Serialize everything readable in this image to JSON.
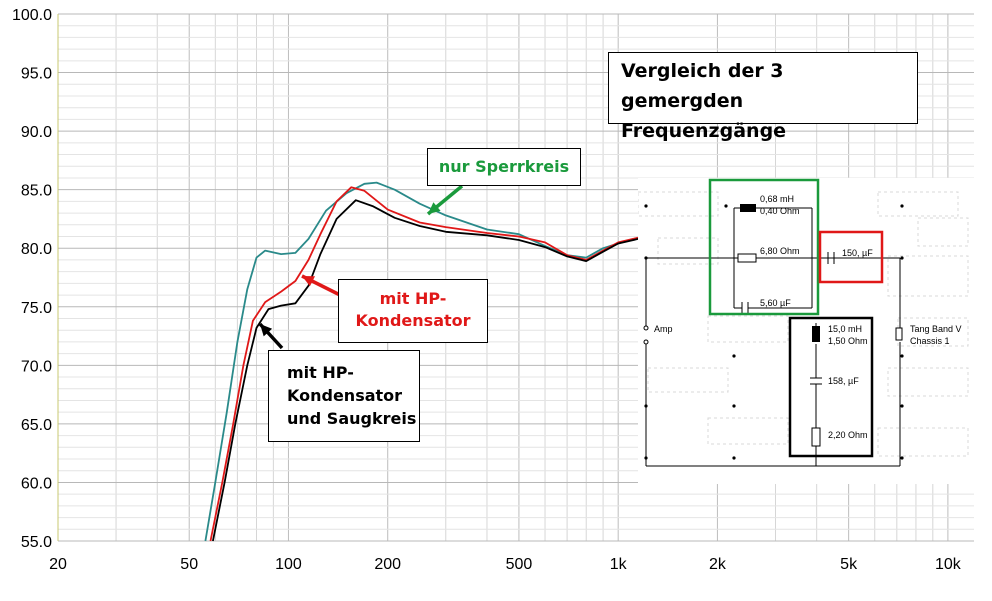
{
  "chart_data": {
    "type": "line",
    "x_scale": "log",
    "xlim": [
      20,
      12000
    ],
    "ylim": [
      55,
      100
    ],
    "y_ticks": [
      "100.0",
      "95.0",
      "90.0",
      "85.0",
      "80.0",
      "75.0",
      "70.0",
      "65.0",
      "60.0",
      "55.0"
    ],
    "x_tick_labels": [
      {
        "value": 20,
        "label": "20"
      },
      {
        "value": 50,
        "label": "50"
      },
      {
        "value": 100,
        "label": "100"
      },
      {
        "value": 200,
        "label": "200"
      },
      {
        "value": 500,
        "label": "500"
      },
      {
        "value": 1000,
        "label": "1k"
      },
      {
        "value": 2000,
        "label": "2k"
      },
      {
        "value": 5000,
        "label": "5k"
      },
      {
        "value": 10000,
        "label": "10k"
      }
    ],
    "grid": true,
    "series": [
      {
        "color": "#2a8a8a",
        "points": [
          [
            56,
            55
          ],
          [
            60,
            60
          ],
          [
            65,
            66
          ],
          [
            70,
            72
          ],
          [
            75,
            76.5
          ],
          [
            80,
            79.2
          ],
          [
            85,
            79.8
          ],
          [
            95,
            79.5
          ],
          [
            105,
            79.6
          ],
          [
            115,
            80.8
          ],
          [
            130,
            83.2
          ],
          [
            150,
            84.7
          ],
          [
            170,
            85.5
          ],
          [
            185,
            85.6
          ],
          [
            210,
            85
          ],
          [
            250,
            83.8
          ],
          [
            300,
            82.8
          ],
          [
            400,
            81.6
          ],
          [
            500,
            81.2
          ],
          [
            600,
            80.2
          ],
          [
            700,
            79.4
          ],
          [
            800,
            79.2
          ],
          [
            900,
            80
          ],
          [
            1000,
            80.4
          ],
          [
            1150,
            80.9
          ]
        ]
      },
      {
        "color": "#e01818",
        "points": [
          [
            58,
            55
          ],
          [
            63,
            60
          ],
          [
            68,
            65
          ],
          [
            73,
            70
          ],
          [
            78,
            73.8
          ],
          [
            85,
            75.4
          ],
          [
            95,
            76.3
          ],
          [
            105,
            77.2
          ],
          [
            115,
            79
          ],
          [
            125,
            81.2
          ],
          [
            140,
            84
          ],
          [
            155,
            85.2
          ],
          [
            170,
            84.9
          ],
          [
            200,
            83.3
          ],
          [
            250,
            82.2
          ],
          [
            300,
            81.8
          ],
          [
            400,
            81.3
          ],
          [
            500,
            81
          ],
          [
            600,
            80.5
          ],
          [
            700,
            79.4
          ],
          [
            800,
            79
          ],
          [
            900,
            79.8
          ],
          [
            1000,
            80.5
          ],
          [
            1150,
            80.9
          ]
        ]
      },
      {
        "color": "#000000",
        "points": [
          [
            59,
            55
          ],
          [
            64,
            60
          ],
          [
            69,
            65
          ],
          [
            75,
            70
          ],
          [
            80,
            73.2
          ],
          [
            87,
            74.8
          ],
          [
            95,
            75.1
          ],
          [
            105,
            75.3
          ],
          [
            115,
            76.8
          ],
          [
            125,
            79.5
          ],
          [
            140,
            82.5
          ],
          [
            160,
            84.1
          ],
          [
            180,
            83.6
          ],
          [
            210,
            82.6
          ],
          [
            250,
            81.9
          ],
          [
            300,
            81.4
          ],
          [
            400,
            81.1
          ],
          [
            500,
            80.7
          ],
          [
            600,
            80.1
          ],
          [
            700,
            79.3
          ],
          [
            800,
            78.9
          ],
          [
            900,
            79.7
          ],
          [
            1000,
            80.4
          ],
          [
            1150,
            80.8
          ]
        ]
      }
    ],
    "annotations": {
      "title_line1": "Vergleich der 3 gemergden",
      "title_line2": "Frequenzgänge",
      "green_label": "nur Sperrkreis",
      "red_label_line1": "mit HP-",
      "red_label_line2": "Kondensator",
      "black_label_line1": "mit HP-",
      "black_label_line2": "Kondensator",
      "black_label_line3": "und Saugkreis"
    },
    "annotation_colors": {
      "green": "#1a9a3c",
      "red": "#e01818",
      "black": "#000000"
    }
  },
  "circuit": {
    "l1": "0,68 mH",
    "l1_r": "0,40 Ohm",
    "r1": "6,80 Ohm",
    "c1": "5,60 µF",
    "c2": "150, µF",
    "l2": "15,0 mH",
    "l2_r": "1,50 Ohm",
    "c3": "158, µF",
    "r2": "2,20 Ohm",
    "amp": "Amp",
    "speaker_line1": "Tang Band V",
    "speaker_line2": "Chassis 1"
  }
}
